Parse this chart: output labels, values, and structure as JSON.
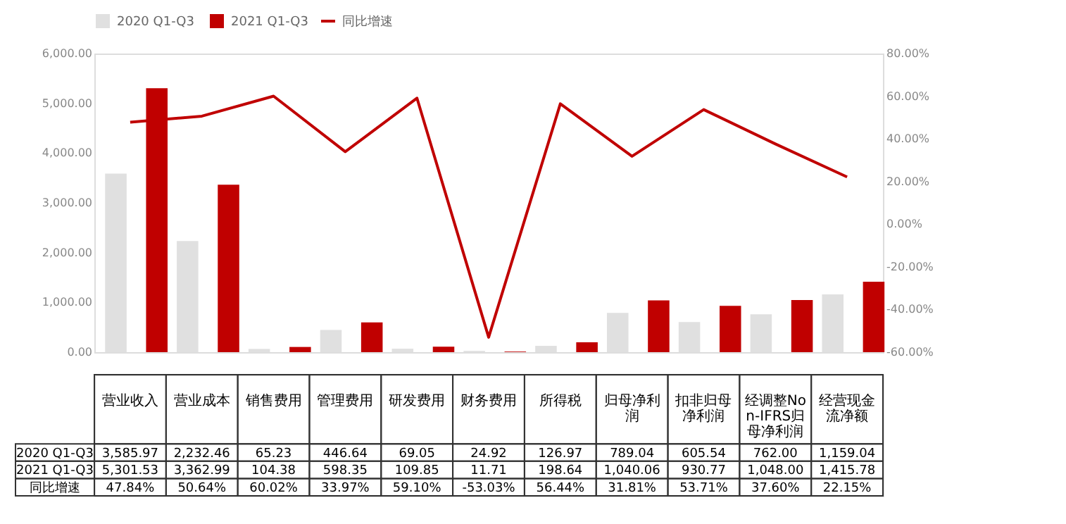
{
  "chart_data": {
    "type": "bar",
    "categories": [
      "营业收入",
      "营业成本",
      "销售费用",
      "管理费用",
      "研发费用",
      "财务费用",
      "所得税",
      "归母净利润",
      "扣非归母净利润",
      "经调整Non-IFRS归母净利润",
      "经营现金流净额"
    ],
    "series": [
      {
        "name": "2020 Q1-Q3",
        "color": "#e0e0e0",
        "values": [
          3585.97,
          2232.46,
          65.23,
          446.64,
          69.05,
          24.92,
          126.97,
          789.04,
          605.54,
          762.0,
          1159.04
        ],
        "value_labels": [
          "3,585.97",
          "2,232.46",
          "65.23",
          "446.64",
          "69.05",
          "24.92",
          "126.97",
          "789.04",
          "605.54",
          "762.00",
          "1,159.04"
        ]
      },
      {
        "name": "2021 Q1-Q3",
        "color": "#c00000",
        "values": [
          5301.53,
          3362.99,
          104.38,
          598.35,
          109.85,
          11.71,
          198.64,
          1040.06,
          930.77,
          1048.0,
          1415.78
        ],
        "value_labels": [
          "5,301.53",
          "3,362.99",
          "104.38",
          "598.35",
          "109.85",
          "11.71",
          "198.64",
          "1,040.06",
          "930.77",
          "1,048.00",
          "1,415.78"
        ]
      },
      {
        "name": "同比增速",
        "type": "line",
        "axis": "y2",
        "color": "#c00000",
        "values": [
          47.84,
          50.64,
          60.02,
          33.97,
          59.1,
          -53.03,
          56.44,
          31.81,
          53.71,
          37.6,
          22.15
        ],
        "value_labels": [
          "47.84%",
          "50.64%",
          "60.02%",
          "33.97%",
          "59.10%",
          "-53.03%",
          "56.44%",
          "31.81%",
          "53.71%",
          "37.60%",
          "22.15%"
        ]
      }
    ],
    "ylim": [
      0,
      6000
    ],
    "yticks": [
      {
        "value": 0,
        "label": "0.00"
      },
      {
        "value": 1000,
        "label": "1,000.00"
      },
      {
        "value": 2000,
        "label": "2,000.00"
      },
      {
        "value": 3000,
        "label": "3,000.00"
      },
      {
        "value": 4000,
        "label": "4,000.00"
      },
      {
        "value": 5000,
        "label": "5,000.00"
      },
      {
        "value": 6000,
        "label": "6,000.00"
      }
    ],
    "y2lim": [
      -60,
      80
    ],
    "y2ticks": [
      {
        "value": -60,
        "label": "-60.00%"
      },
      {
        "value": -40,
        "label": "-40.00%"
      },
      {
        "value": -20,
        "label": "-20.00%"
      },
      {
        "value": 0,
        "label": "0.00%"
      },
      {
        "value": 20,
        "label": "20.00%"
      },
      {
        "value": 40,
        "label": "40.00%"
      },
      {
        "value": 60,
        "label": "60.00%"
      },
      {
        "value": 80,
        "label": "80.00%"
      }
    ],
    "grid": false,
    "legend": "top",
    "tick_labels": "y"
  }
}
